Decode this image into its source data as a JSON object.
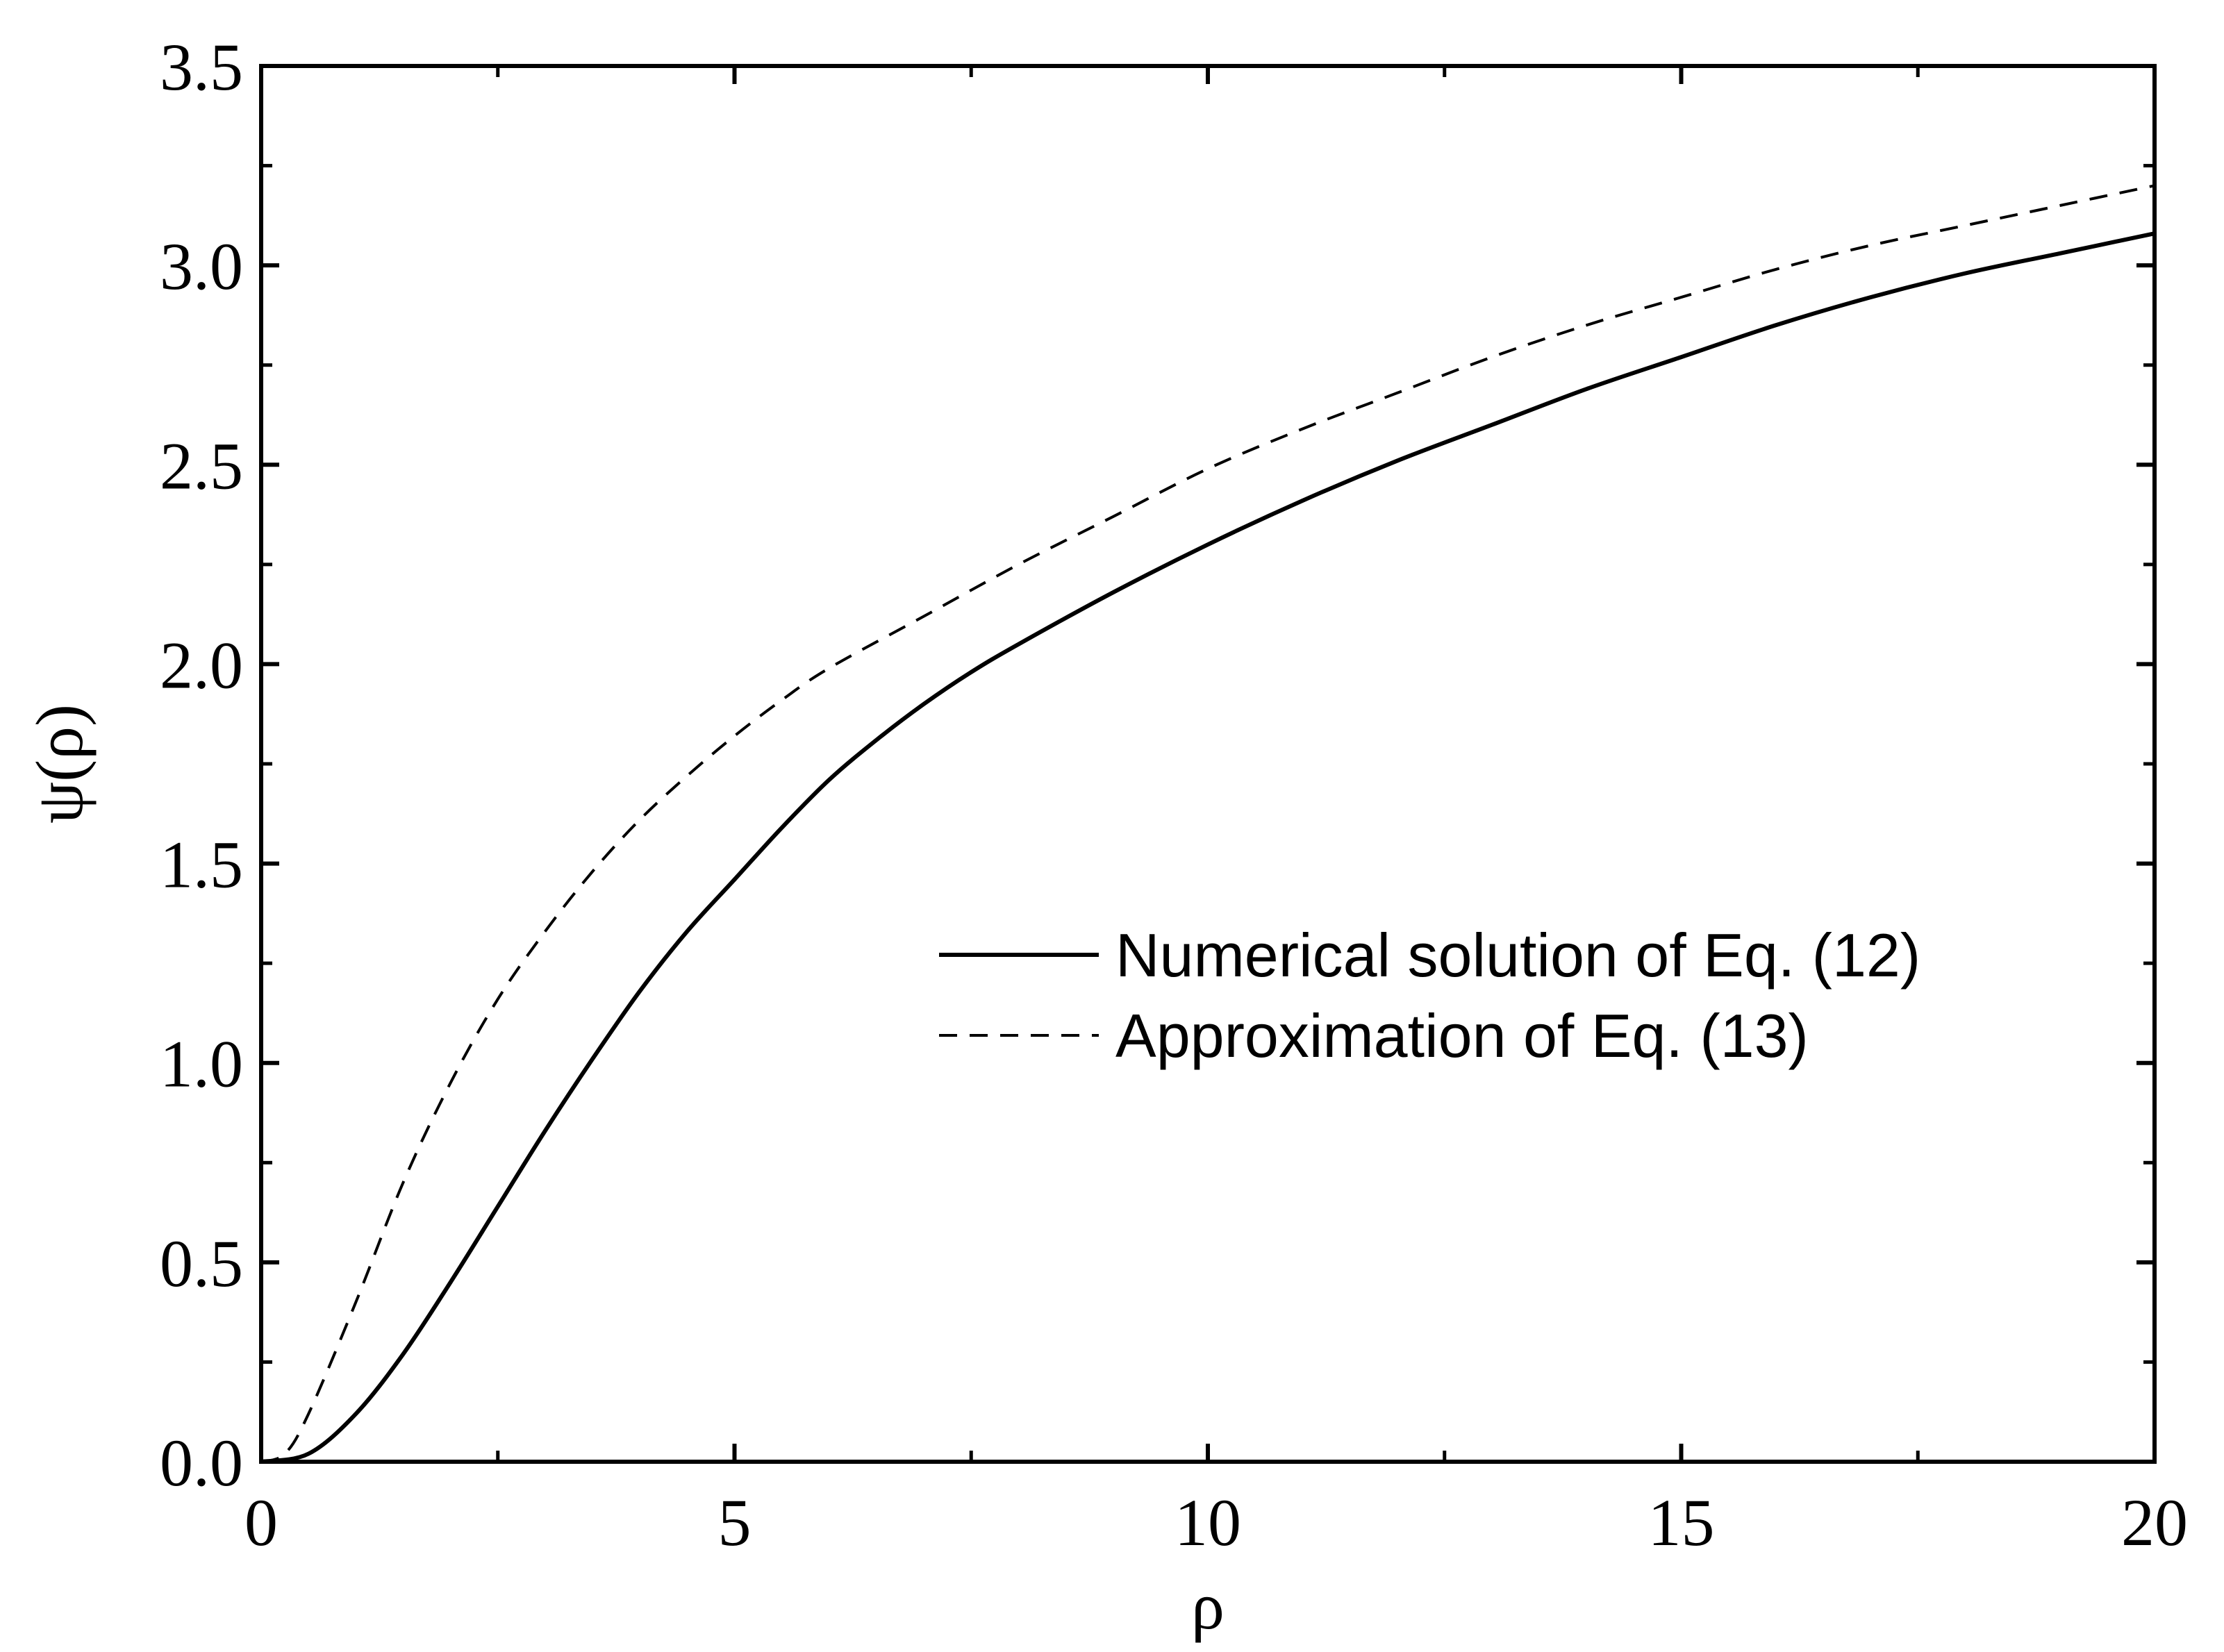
{
  "chart_data": {
    "type": "line",
    "title": "",
    "xlabel": "ρ",
    "ylabel": "ψ(ρ)",
    "xlim": [
      0,
      20
    ],
    "ylim": [
      0,
      3.5
    ],
    "x_ticks": [
      "0",
      "5",
      "10",
      "15",
      "20"
    ],
    "y_ticks": [
      "0.0",
      "0.5",
      "1.0",
      "1.5",
      "2.0",
      "2.5",
      "3.0",
      "3.5"
    ],
    "grid": false,
    "legend_position": "center-right",
    "series": [
      {
        "name": "Numerical solution of Eq. (12)",
        "style": "solid",
        "color": "#000000",
        "points": [
          [
            0.0,
            0.0
          ],
          [
            0.5,
            0.02
          ],
          [
            1.0,
            0.12
          ],
          [
            1.5,
            0.27
          ],
          [
            2.0,
            0.45
          ],
          [
            2.5,
            0.64
          ],
          [
            3.0,
            0.83
          ],
          [
            3.5,
            1.01
          ],
          [
            4.0,
            1.18
          ],
          [
            4.5,
            1.33
          ],
          [
            5.0,
            1.46
          ],
          [
            5.5,
            1.59
          ],
          [
            6.0,
            1.71
          ],
          [
            6.5,
            1.81
          ],
          [
            7.0,
            1.9
          ],
          [
            7.5,
            1.98
          ],
          [
            8.0,
            2.05
          ],
          [
            9.0,
            2.18
          ],
          [
            10.0,
            2.3
          ],
          [
            11.0,
            2.41
          ],
          [
            12.0,
            2.51
          ],
          [
            13.0,
            2.6
          ],
          [
            14.0,
            2.69
          ],
          [
            15.0,
            2.77
          ],
          [
            16.0,
            2.85
          ],
          [
            17.0,
            2.92
          ],
          [
            18.0,
            2.98
          ],
          [
            19.0,
            3.03
          ],
          [
            20.0,
            3.08
          ]
        ]
      },
      {
        "name": "Approximation of Eq. (13)",
        "style": "dashed",
        "color": "#000000",
        "points": [
          [
            0.0,
            0.0
          ],
          [
            0.25,
            0.02
          ],
          [
            0.5,
            0.12
          ],
          [
            1.0,
            0.4
          ],
          [
            1.5,
            0.7
          ],
          [
            2.0,
            0.95
          ],
          [
            2.5,
            1.16
          ],
          [
            3.0,
            1.33
          ],
          [
            3.5,
            1.48
          ],
          [
            4.0,
            1.61
          ],
          [
            4.5,
            1.72
          ],
          [
            5.0,
            1.82
          ],
          [
            5.5,
            1.91
          ],
          [
            6.0,
            1.99
          ],
          [
            7.0,
            2.12
          ],
          [
            8.0,
            2.25
          ],
          [
            9.0,
            2.37
          ],
          [
            10.0,
            2.49
          ],
          [
            11.0,
            2.59
          ],
          [
            12.0,
            2.68
          ],
          [
            13.0,
            2.77
          ],
          [
            14.0,
            2.85
          ],
          [
            15.0,
            2.92
          ],
          [
            16.0,
            2.99
          ],
          [
            17.0,
            3.05
          ],
          [
            18.0,
            3.1
          ],
          [
            19.0,
            3.15
          ],
          [
            20.0,
            3.2
          ]
        ]
      }
    ]
  }
}
